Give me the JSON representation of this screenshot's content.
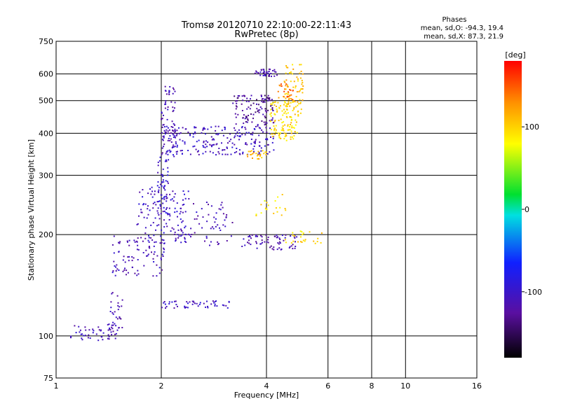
{
  "chart_data": {
    "type": "scatter",
    "title": "Tromsø 20120710 22:10:00-22:11:43",
    "subtitle": "RwPretec (8p)",
    "xlabel": "Frequency [MHz]",
    "ylabel": "Stationary phase Virtual Height [km]",
    "x_scale": "log2",
    "y_scale": "log",
    "xlim": [
      1,
      16
    ],
    "ylim": [
      75,
      750
    ],
    "x_ticks": [
      1,
      2,
      4,
      6,
      8,
      10,
      16
    ],
    "y_ticks": [
      75,
      100,
      200,
      300,
      400,
      500,
      600,
      750
    ],
    "grid": true,
    "phase_stats": {
      "title": "Phases",
      "line_o": "mean, sd,O: -94.3, 19.4",
      "line_x": "mean, sd,X: 87.3, 21.9"
    },
    "colorbar": {
      "label": "[deg]",
      "range": [
        -180,
        180
      ],
      "ticks": [
        100,
        0,
        -100
      ]
    },
    "clusters": [
      {
        "name": "",
        "x": [
          1.1,
          1.5
        ],
        "y": [
          96,
          108
        ],
        "phase": -110,
        "count": 50
      },
      {
        "name": "",
        "x": [
          1.4,
          1.55
        ],
        "y": [
          105,
          135
        ],
        "phase": -115,
        "count": 30
      },
      {
        "name": "",
        "x": [
          1.45,
          2.05
        ],
        "y": [
          150,
          200
        ],
        "phase": -110,
        "count": 90
      },
      {
        "name": "",
        "x": [
          1.7,
          2.4
        ],
        "y": [
          190,
          280
        ],
        "phase": -105,
        "count": 110
      },
      {
        "name": "",
        "x": [
          1.95,
          2.1
        ],
        "y": [
          210,
          340
        ],
        "phase": -100,
        "count": 60
      },
      {
        "name": "",
        "x": [
          2.0,
          2.2
        ],
        "y": [
          340,
          560
        ],
        "phase": -110,
        "count": 70
      },
      {
        "name": "",
        "x": [
          2.0,
          4.2
        ],
        "y": [
          345,
          420
        ],
        "phase": -105,
        "count": 220
      },
      {
        "name": "",
        "x": [
          2.2,
          3.2
        ],
        "y": [
          185,
          250
        ],
        "phase": -110,
        "count": 70
      },
      {
        "name": "",
        "x": [
          2.0,
          3.2
        ],
        "y": [
          121,
          127
        ],
        "phase": -105,
        "count": 50
      },
      {
        "name": "",
        "x": [
          3.2,
          4.2
        ],
        "y": [
          420,
          520
        ],
        "phase": -125,
        "count": 110
      },
      {
        "name": "",
        "x": [
          3.4,
          4.9
        ],
        "y": [
          180,
          200
        ],
        "phase": -115,
        "count": 70
      },
      {
        "name": "",
        "x": [
          3.7,
          4.3
        ],
        "y": [
          590,
          620
        ],
        "phase": -115,
        "count": 40
      },
      {
        "name": "",
        "x": [
          4.1,
          4.9
        ],
        "y": [
          380,
          500
        ],
        "phase": 95,
        "count": 110
      },
      {
        "name": "",
        "x": [
          4.5,
          5.1
        ],
        "y": [
          450,
          640
        ],
        "phase": 105,
        "count": 80
      },
      {
        "name": "",
        "x": [
          4.3,
          4.8
        ],
        "y": [
          500,
          560
        ],
        "phase": 140,
        "count": 25
      },
      {
        "name": "",
        "x": [
          3.5,
          4.0
        ],
        "y": [
          335,
          355
        ],
        "phase": 110,
        "count": 25
      },
      {
        "name": "",
        "x": [
          4.5,
          5.8
        ],
        "y": [
          188,
          205
        ],
        "phase": 95,
        "count": 25
      },
      {
        "name": "",
        "x": [
          3.7,
          4.6
        ],
        "y": [
          225,
          265
        ],
        "phase": 90,
        "count": 20
      }
    ]
  }
}
